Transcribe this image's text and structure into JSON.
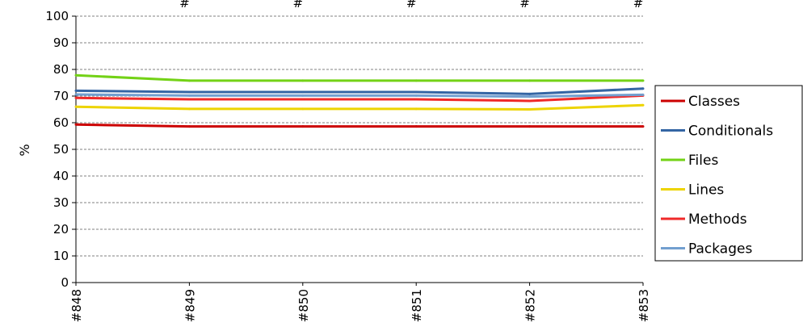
{
  "chart_data": {
    "type": "line",
    "title": "",
    "xlabel": "",
    "ylabel": "%",
    "ylim": [
      0,
      100
    ],
    "yticks": [
      0,
      10,
      20,
      30,
      40,
      50,
      60,
      70,
      80,
      90,
      100
    ],
    "grid": true,
    "legend_position": "right",
    "categories": [
      "#848",
      "#849",
      "#850",
      "#851",
      "#852",
      "#853"
    ],
    "top_labels": [
      "#",
      "#",
      "#",
      "#",
      "#"
    ],
    "series": [
      {
        "name": "Classes",
        "color": "#cc0000",
        "values": [
          59.3,
          58.6,
          58.6,
          58.6,
          58.6,
          58.6
        ]
      },
      {
        "name": "Conditionals",
        "color": "#3465a4",
        "values": [
          72.0,
          71.5,
          71.5,
          71.5,
          70.8,
          72.8
        ]
      },
      {
        "name": "Files",
        "color": "#73d216",
        "values": [
          77.8,
          75.8,
          75.8,
          75.8,
          75.8,
          75.8
        ]
      },
      {
        "name": "Lines",
        "color": "#edd400",
        "values": [
          66.0,
          65.2,
          65.2,
          65.2,
          65.0,
          66.6
        ]
      },
      {
        "name": "Methods",
        "color": "#ef2929",
        "values": [
          69.3,
          68.8,
          68.8,
          68.8,
          68.2,
          70.2
        ]
      },
      {
        "name": "Packages",
        "color": "#729fcf",
        "values": [
          70.6,
          70.2,
          70.2,
          70.2,
          69.8,
          70.5
        ]
      }
    ]
  }
}
